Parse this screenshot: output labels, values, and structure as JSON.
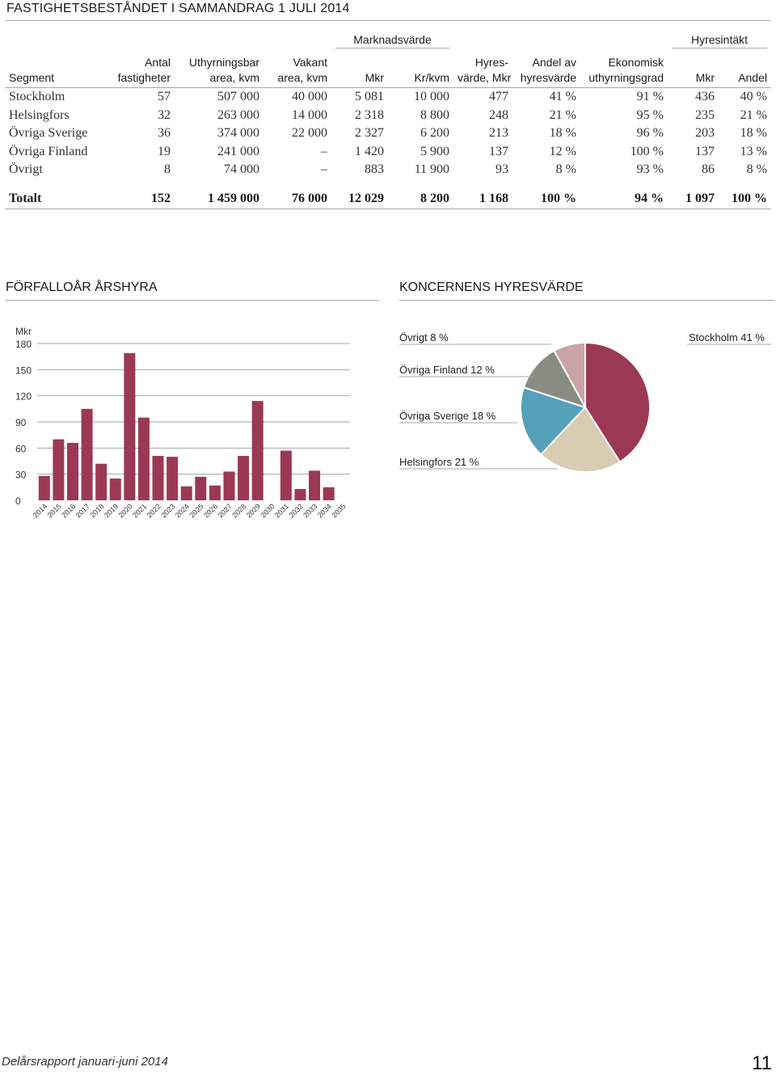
{
  "title": "FASTIGHETSBESTÅNDET I SAMMANDRAG 1 JULI 2014",
  "table": {
    "group_headers": {
      "marknadsvarde": "Marknadsvärde",
      "hyresintakt": "Hyresintäkt"
    },
    "columns": [
      {
        "l1": "",
        "l2": "Segment"
      },
      {
        "l1": "Antal",
        "l2": "fastigheter"
      },
      {
        "l1": "Uthyrningsbar",
        "l2": "area, kvm"
      },
      {
        "l1": "Vakant",
        "l2": "area, kvm"
      },
      {
        "l1": "",
        "l2": "Mkr"
      },
      {
        "l1": "",
        "l2": "Kr/kvm"
      },
      {
        "l1": "Hyres-",
        "l2": "värde, Mkr"
      },
      {
        "l1": "Andel av",
        "l2": "hyresvärde"
      },
      {
        "l1": "Ekonomisk",
        "l2": "uthyrningsgrad"
      },
      {
        "l1": "",
        "l2": "Mkr"
      },
      {
        "l1": "",
        "l2": "Andel"
      }
    ],
    "rows": [
      [
        "Stockholm",
        "57",
        "507 000",
        "40 000",
        "5 081",
        "10 000",
        "477",
        "41 %",
        "91 %",
        "436",
        "40 %"
      ],
      [
        "Helsingfors",
        "32",
        "263 000",
        "14 000",
        "2 318",
        "8 800",
        "248",
        "21 %",
        "95 %",
        "235",
        "21 %"
      ],
      [
        "Övriga Sverige",
        "36",
        "374 000",
        "22 000",
        "2 327",
        "6 200",
        "213",
        "18 %",
        "96 %",
        "203",
        "18 %"
      ],
      [
        "Övriga Finland",
        "19",
        "241 000",
        "–",
        "1 420",
        "5 900",
        "137",
        "12 %",
        "100 %",
        "137",
        "13 %"
      ],
      [
        "Övrigt",
        "8",
        "74 000",
        "–",
        "883",
        "11 900",
        "93",
        "8 %",
        "93 %",
        "86",
        "8 %"
      ]
    ],
    "total": [
      "Totalt",
      "152",
      "1 459 000",
      "76 000",
      "12 029",
      "8 200",
      "1 168",
      "100 %",
      "94 %",
      "1 097",
      "100 %"
    ]
  },
  "section_left_title": "FÖRFALLOÅR ÅRSHYRA",
  "section_right_title": "KONCERNENS HYRESVÄRDE",
  "chart_data": [
    {
      "type": "bar",
      "ylabel": "Mkr",
      "ylim": [
        0,
        180
      ],
      "yticks": [
        0,
        30,
        60,
        90,
        120,
        150,
        180
      ],
      "grid": true,
      "color": "#9b3955",
      "categories": [
        "2014",
        "2015",
        "2016",
        "2017",
        "2018",
        "2019",
        "2020",
        "2021",
        "2022",
        "2023",
        "2024",
        "2025",
        "2026",
        "2027",
        "2028",
        "2029",
        "2030",
        "2031",
        "2032",
        "2033",
        "2034",
        "2035"
      ],
      "values": [
        28,
        70,
        66,
        105,
        42,
        25,
        169,
        95,
        51,
        50,
        16,
        27,
        17,
        33,
        51,
        114,
        0,
        57,
        13,
        34,
        15,
        0
      ]
    },
    {
      "type": "pie",
      "slices": [
        {
          "label": "Stockholm 41 %",
          "value": 41,
          "color": "#9b3955"
        },
        {
          "label": "Helsingfors 21 %",
          "value": 21,
          "color": "#d8ccb3"
        },
        {
          "label": "Övriga Sverige 18 %",
          "value": 18,
          "color": "#57a0b9"
        },
        {
          "label": "Övriga Finland 12 %",
          "value": 12,
          "color": "#8a8c83"
        },
        {
          "label": "Övrigt 8 %",
          "value": 8,
          "color": "#caa3a6"
        }
      ]
    }
  ],
  "footer": {
    "left": "Delårsrapport januari-juni 2014",
    "page_number": "11"
  }
}
